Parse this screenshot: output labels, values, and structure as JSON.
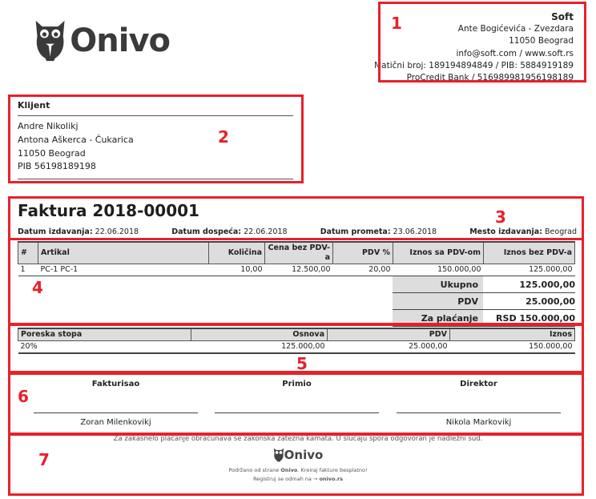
{
  "brand": {
    "logo_text": "Onivo"
  },
  "seller": {
    "name": "Soft",
    "address": "Ante Bogićevića - Zvezdara",
    "city": "11050 Beograd",
    "contact": "info@soft.com / www.soft.rs",
    "ids": "Matični broj: 189194894849 / PIB: 5884919189",
    "bank": "ProCredit Bank / 516989981956198189"
  },
  "client": {
    "heading": "Klijent",
    "name": "Andre Nikolikj",
    "address": "Antona Aškerca - Čukarica",
    "city": "11050 Beograd",
    "pib": "PIB 56198189198"
  },
  "invoice": {
    "title": "Faktura 2018-00001",
    "dates": [
      {
        "label": "Datum izdavanja:",
        "value": "22.06.2018"
      },
      {
        "label": "Datum dospeća:",
        "value": "22.06.2018"
      },
      {
        "label": "Datum prometa:",
        "value": "23.06.2018"
      },
      {
        "label": "Mesto izdavanja:",
        "value": "Beograd"
      }
    ]
  },
  "items": {
    "headers": [
      "#",
      "Artikal",
      "Količina",
      "Cena bez PDV-a",
      "PDV %",
      "Iznos sa PDV-om",
      "Iznos bez PDV-a"
    ],
    "rows": [
      [
        "1",
        "PC-1 PC-1",
        "10,00",
        "12.500,00",
        "20,00",
        "150.000,00",
        "125.000,00"
      ]
    ]
  },
  "totals": [
    {
      "label": "Ukupno",
      "value": "125.000,00"
    },
    {
      "label": "PDV",
      "value": "25.000,00"
    },
    {
      "label": "Za plaćanje",
      "value": "RSD 150.000,00"
    }
  ],
  "tax": {
    "headers": [
      "Poreska stopa",
      "Osnova",
      "PDV",
      "Iznos"
    ],
    "rows": [
      [
        "20%",
        "125.000,00",
        "25.000,00",
        "150.000,00"
      ]
    ]
  },
  "signatures": [
    {
      "label": "Fakturisao",
      "name": "Zoran Milenkovikj"
    },
    {
      "label": "Primio",
      "name": ""
    },
    {
      "label": "Direktor",
      "name": "Nikola Markovikj"
    }
  ],
  "footer": {
    "notice": "Za zakasnelo plaćanje obračunava se zakonska zatezna kamata. U slučaju spora odgovoran je nadležni sud.",
    "logo_text": "Onivo",
    "powered_prefix": "Podržano od strane ",
    "powered_brand": "Onivo",
    "powered_suffix": ". Kreiraj fakture besplatno!",
    "register_prefix": "Registruj se odmah na → ",
    "register_link": "onivo.rs"
  },
  "annotations": [
    "1",
    "2",
    "3",
    "4",
    "5",
    "6",
    "7"
  ],
  "colors": {
    "annotation": "#e8202a",
    "header_bg": "#dddddd"
  }
}
